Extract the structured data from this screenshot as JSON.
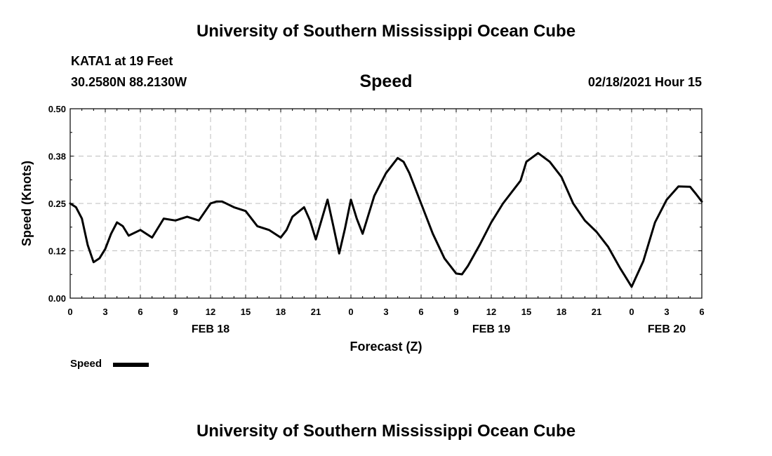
{
  "header": {
    "title": "University of Southern Mississippi Ocean Cube",
    "station": "KATA1 at 19 Feet",
    "location": "30.2580N 88.2130W",
    "variable": "Speed",
    "datetime": "02/18/2021 Hour 15"
  },
  "footer": {
    "title": "University of Southern Mississippi Ocean Cube"
  },
  "legend": {
    "label": "Speed"
  },
  "chart_data": {
    "type": "line",
    "title": "Speed",
    "xlabel": "Forecast (Z)",
    "ylabel": "Speed (Knots)",
    "xlim": [
      0,
      54
    ],
    "ylim": [
      0.0,
      0.5
    ],
    "grid": true,
    "legend_position": "bottom-left",
    "y_ticks": [
      0.0,
      0.125,
      0.25,
      0.375,
      0.5
    ],
    "y_tick_labels": [
      "0.00",
      "0.12",
      "0.25",
      "0.38",
      "0.50"
    ],
    "x_ticks": [
      0,
      3,
      6,
      9,
      12,
      15,
      18,
      21,
      24,
      27,
      30,
      33,
      36,
      39,
      42,
      45,
      48,
      51,
      54
    ],
    "x_tick_labels": [
      "0",
      "3",
      "6",
      "9",
      "12",
      "15",
      "18",
      "21",
      "0",
      "3",
      "6",
      "9",
      "12",
      "15",
      "18",
      "21",
      "0",
      "3",
      "6"
    ],
    "day_labels": [
      {
        "x": 12,
        "label": "FEB 18"
      },
      {
        "x": 36,
        "label": "FEB 19"
      },
      {
        "x": 51,
        "label": "FEB 20"
      }
    ],
    "series": [
      {
        "name": "Speed",
        "color": "#000000",
        "x": [
          0,
          0.5,
          1,
          1.5,
          2,
          2.5,
          3,
          3.5,
          4,
          4.5,
          5,
          6,
          7,
          8,
          9,
          10,
          11,
          12,
          12.5,
          13,
          14,
          15,
          16,
          17,
          18,
          18.5,
          19,
          20,
          20.5,
          21,
          22,
          22.5,
          23,
          23.5,
          24,
          24.5,
          25,
          26,
          27,
          28,
          28.5,
          29,
          30,
          31,
          32,
          33,
          33.5,
          34,
          35,
          36,
          37,
          38,
          38.5,
          39,
          40,
          41,
          42,
          43,
          44,
          45,
          46,
          47,
          47.5,
          48,
          49,
          50,
          51,
          52,
          53,
          53.5,
          54
        ],
        "y": [
          0.25,
          0.24,
          0.21,
          0.14,
          0.095,
          0.105,
          0.13,
          0.17,
          0.2,
          0.19,
          0.165,
          0.18,
          0.16,
          0.21,
          0.205,
          0.215,
          0.205,
          0.25,
          0.255,
          0.255,
          0.24,
          0.23,
          0.19,
          0.18,
          0.16,
          0.18,
          0.215,
          0.24,
          0.205,
          0.155,
          0.26,
          0.19,
          0.118,
          0.185,
          0.26,
          0.21,
          0.17,
          0.27,
          0.33,
          0.37,
          0.36,
          0.33,
          0.25,
          0.17,
          0.105,
          0.065,
          0.063,
          0.085,
          0.14,
          0.2,
          0.25,
          0.29,
          0.31,
          0.36,
          0.383,
          0.36,
          0.32,
          0.25,
          0.205,
          0.175,
          0.135,
          0.08,
          0.055,
          0.03,
          0.098,
          0.2,
          0.26,
          0.295,
          0.294,
          0.275,
          0.255
        ]
      }
    ]
  }
}
